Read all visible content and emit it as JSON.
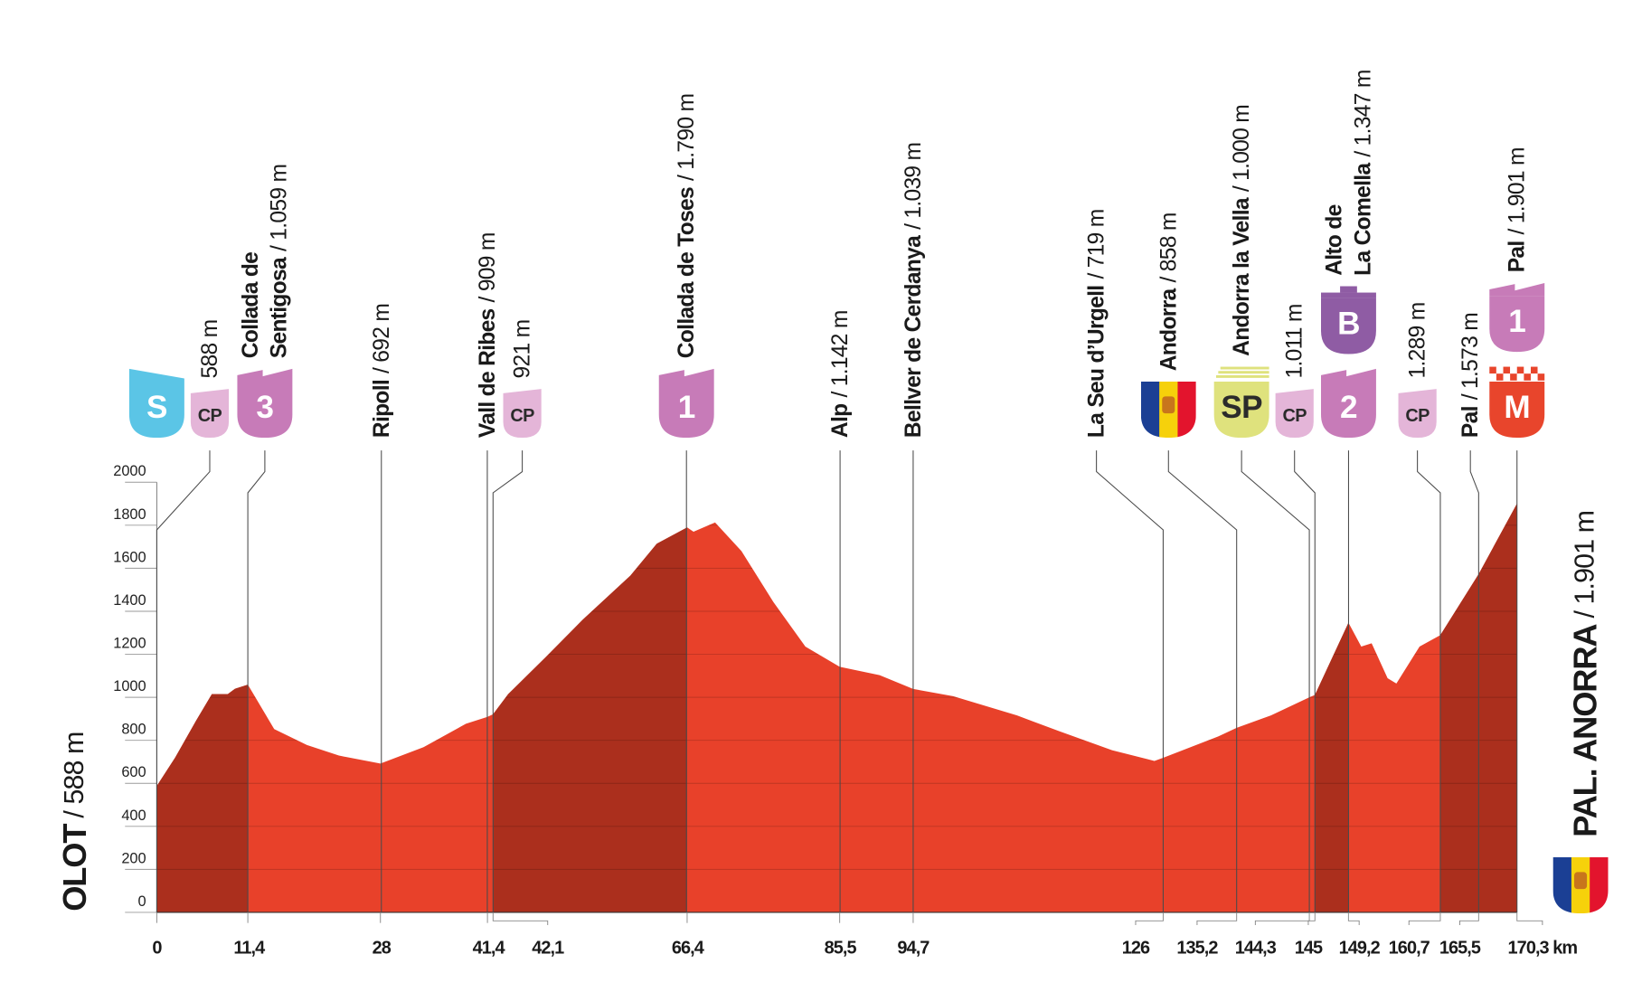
{
  "chart_data": {
    "type": "area",
    "profile": {
      "x": [
        0,
        2.3,
        4.9,
        6.9,
        8.9,
        9.8,
        11.4,
        14.7,
        18.8,
        22.8,
        28,
        33.4,
        38.7,
        41.4,
        42.1,
        44,
        48.7,
        53.3,
        59.3,
        62.6,
        66.4,
        67.2,
        69.9,
        73.2,
        77.2,
        81.2,
        85.5,
        90.5,
        94.7,
        99.7,
        107.7,
        113,
        119.6,
        124.9,
        126,
        132.9,
        135.2,
        139.5,
        144.3,
        145,
        149.2,
        150.8,
        152.1,
        154.1,
        155.2,
        158.1,
        160.7,
        165.5,
        170.3
      ],
      "values": [
        588,
        720,
        890,
        1015,
        1015,
        1040,
        1059,
        852,
        778,
        729,
        692,
        768,
        877,
        909,
        921,
        1015,
        1187,
        1360,
        1566,
        1714,
        1790,
        1770,
        1813,
        1680,
        1443,
        1236,
        1142,
        1103,
        1039,
        1005,
        916,
        842,
        754,
        704,
        719,
        818,
        858,
        916,
        1000,
        1011,
        1347,
        1236,
        1251,
        1089,
        1064,
        1236,
        1289,
        1573,
        1901
      ],
      "color": "#e8412a"
    },
    "segments": [
      {
        "from": 0,
        "to": 11.4,
        "color": "#ab2f1d"
      },
      {
        "from": 42.1,
        "to": 66.4,
        "color": "#ab2f1d"
      },
      {
        "from": 145,
        "to": 149.2,
        "color": "#ab2f1d"
      },
      {
        "from": 160.7,
        "to": 170.3,
        "color": "#ab2f1d"
      }
    ],
    "xlim": [
      0,
      170.3
    ],
    "ylim": [
      0,
      2000
    ],
    "yticks": [
      0,
      200,
      400,
      600,
      800,
      1000,
      1200,
      1400,
      1600,
      1800,
      2000
    ],
    "xticks": [
      0,
      {
        "value": 11.4,
        "label": "11,4"
      },
      28,
      {
        "value": 41.4,
        "label": "41,4"
      },
      {
        "value": 42.1,
        "label": "42,1"
      },
      {
        "value": 66.4,
        "label": "66,4"
      },
      {
        "value": 85.5,
        "label": "85,5"
      },
      {
        "value": 94.7,
        "label": "94,7"
      },
      126,
      {
        "value": 135.2,
        "label": "135,2"
      },
      {
        "value": 144.3,
        "label": "144,3"
      },
      145,
      {
        "value": 149.2,
        "label": "149,2"
      },
      {
        "value": 160.7,
        "label": "160,7"
      },
      {
        "value": 165.5,
        "label": "165,5"
      },
      {
        "value": 170.3,
        "label": "170,3 km"
      }
    ],
    "grid": true,
    "start": {
      "name": "OLOT",
      "altitude": "/ 588 m"
    },
    "finish": {
      "name": "PAL. ANORRA",
      "altitude": "/ 1.901 m",
      "icon": {
        "kind": "flag",
        "colors": [
          "#1b3f94",
          "#f6d10b",
          "#e3142d"
        ]
      }
    },
    "waypoints": [
      {
        "icons": [
          {
            "text": "S",
            "color": "#5bc5e6",
            "text_color": "#ffffff",
            "kind": "start"
          }
        ]
      },
      {
        "km": 0,
        "altitude": "588 m",
        "icons": [
          {
            "text": "CP",
            "color": "#e4b5d8",
            "text_color": "#2b2b2b",
            "kind": "small"
          }
        ]
      },
      {
        "km": 11.4,
        "name": [
          "Collada de",
          "Sentigosa"
        ],
        "altitude": "/ 1.059 m",
        "icons": [
          {
            "text": "3",
            "color": "#c77bb8",
            "text_color": "#ffffff",
            "kind": "climb"
          }
        ]
      },
      {
        "km": 28,
        "name": [
          "Ripoll"
        ],
        "altitude": "/ 692 m"
      },
      {
        "km": 41.4,
        "name": [
          "Vall de Ribes"
        ],
        "altitude": "/ 909 m"
      },
      {
        "km": 42.1,
        "altitude": "921 m",
        "icons": [
          {
            "text": "CP",
            "color": "#e4b5d8",
            "text_color": "#2b2b2b",
            "kind": "small"
          }
        ]
      },
      {
        "km": 66.4,
        "name": [
          "Collada de Toses"
        ],
        "altitude": "/ 1.790 m",
        "icons": [
          {
            "text": "1",
            "color": "#c77bb8",
            "text_color": "#ffffff",
            "kind": "climb"
          }
        ]
      },
      {
        "km": 85.5,
        "name": [
          "Alp"
        ],
        "altitude": "/ 1.142 m"
      },
      {
        "km": 94.7,
        "name": [
          "Bellver de Cerdanya"
        ],
        "altitude": "/ 1.039 m"
      },
      {
        "km": 126,
        "name": [
          "La Seu d’Urgell"
        ],
        "altitude": "/ 719 m"
      },
      {
        "km": 135.2,
        "name": [
          "Andorra"
        ],
        "altitude": "/ 858 m",
        "icons": [
          {
            "kind": "flag",
            "colors": [
              "#1b3f94",
              "#f6d10b",
              "#e3142d"
            ]
          }
        ]
      },
      {
        "km": 144.3,
        "name": [
          "Andorra la Vella"
        ],
        "altitude": "/ 1.000 m",
        "icons": [
          {
            "text": "SP",
            "color": "#dfe27d",
            "text_color": "#2b2b2b",
            "kind": "sprint"
          }
        ]
      },
      {
        "km": 145,
        "altitude": "1.011 m",
        "icons": [
          {
            "text": "CP",
            "color": "#e4b5d8",
            "text_color": "#2b2b2b",
            "kind": "small"
          }
        ]
      },
      {
        "km": 149.2,
        "name": [
          "Alto de",
          "La Comella"
        ],
        "altitude": "/ 1.347 m",
        "icons": [
          {
            "text": "2",
            "color": "#c77bb8",
            "text_color": "#ffffff",
            "kind": "climb"
          },
          {
            "text": "B",
            "color": "#8f5ca4",
            "text_color": "#ffffff",
            "kind": "tower"
          }
        ]
      },
      {
        "km": 160.7,
        "altitude": "1.289 m",
        "icons": [
          {
            "text": "CP",
            "color": "#e4b5d8",
            "text_color": "#2b2b2b",
            "kind": "small"
          }
        ]
      },
      {
        "km": 165.5,
        "name": [
          "Pal"
        ],
        "altitude": "/ 1.573 m"
      },
      {
        "km": 170.3,
        "name": [
          "Pal"
        ],
        "altitude": "/ 1.901 m",
        "icons": [
          {
            "text": "M",
            "color": "#e8452c",
            "text_color": "#ffffff",
            "kind": "finish"
          },
          {
            "text": "1",
            "color": "#c77bb8",
            "text_color": "#ffffff",
            "kind": "climb"
          }
        ]
      }
    ]
  }
}
